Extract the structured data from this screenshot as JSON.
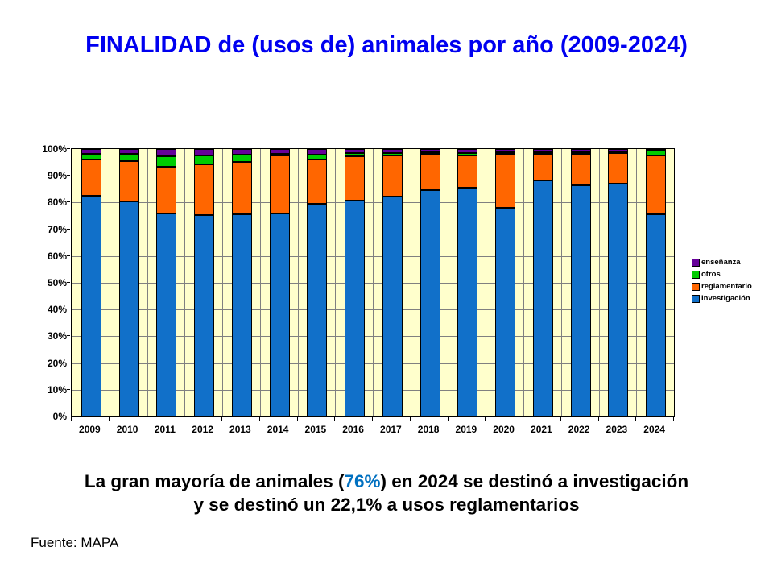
{
  "page": {
    "title": "FINALIDAD de (usos de) animales por año (2009-2024)",
    "title_color": "#0000F0",
    "caption": {
      "line1_pre": "La gran mayoría de animales (",
      "highlight": "76%",
      "highlight_color": "#0070C0",
      "line1_post": ")  en 2024 se destinó a investigación",
      "line2": "y se destinó un 22,1%  a usos reglamentarios"
    },
    "source": "Fuente: MAPA"
  },
  "chart_data": {
    "type": "bar",
    "subtype": "stacked-100-percent",
    "title": "",
    "xlabel": "",
    "ylabel": "",
    "grid": "both",
    "plot_bg": "#FFFFCC",
    "gridline_color": "#808080",
    "axis_color": "#000000",
    "categories": [
      "2009",
      "2010",
      "2011",
      "2012",
      "2013",
      "2014",
      "2015",
      "2016",
      "2017",
      "2018",
      "2019",
      "2020",
      "2021",
      "2022",
      "2023",
      "2024"
    ],
    "series": [
      {
        "name": "Investigación",
        "color": "#1170C9",
        "values": [
          82.5,
          80.4,
          75.9,
          75.3,
          75.6,
          76.1,
          79.4,
          80.7,
          82.3,
          84.7,
          85.6,
          78.2,
          88.4,
          86.5,
          87.2,
          76.0
        ]
      },
      {
        "name": "reglamentario",
        "color": "#FF6600",
        "values": [
          13.7,
          15.2,
          17.6,
          19.0,
          19.6,
          21.8,
          16.7,
          16.6,
          15.3,
          13.5,
          12.0,
          20.2,
          9.8,
          11.8,
          11.3,
          22.1
        ]
      },
      {
        "name": "otros",
        "color": "#00CC00",
        "values": [
          1.9,
          2.6,
          3.8,
          3.4,
          2.6,
          0.4,
          1.9,
          1.3,
          0.9,
          0.6,
          1.0,
          0.4,
          0.5,
          0.4,
          0.7,
          1.7
        ]
      },
      {
        "name": "enseñanza",
        "color": "#660099",
        "values": [
          1.9,
          1.8,
          2.7,
          2.3,
          2.2,
          1.7,
          2.0,
          1.4,
          1.5,
          1.2,
          1.4,
          1.2,
          1.3,
          1.3,
          0.8,
          0.2
        ]
      }
    ],
    "stack_order_bottom_to_top": [
      "Investigación",
      "reglamentario",
      "otros",
      "enseñanza"
    ],
    "legend": {
      "position": "right",
      "items_top_to_bottom": [
        "enseñanza",
        "otros",
        "reglamentario",
        "Investigación"
      ]
    },
    "y_axis": {
      "min": 0,
      "max": 100,
      "tick_step": 10,
      "tick_labels": [
        "0%",
        "10%",
        "20%",
        "30%",
        "40%",
        "50%",
        "60%",
        "70%",
        "80%",
        "90%",
        "100%"
      ]
    }
  }
}
